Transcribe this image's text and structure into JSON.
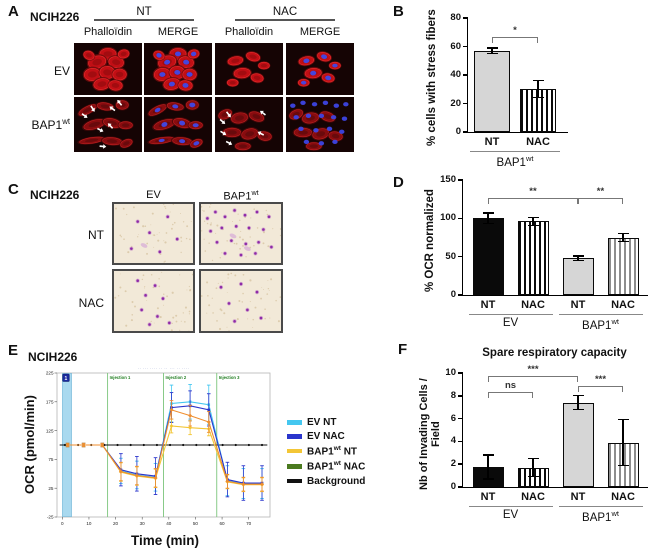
{
  "panels": {
    "a": {
      "label": "A",
      "cell_line": "NCIH226",
      "groups": [
        "NT",
        "NAC"
      ],
      "col_headers": [
        "Phalloïdin",
        "MERGE",
        "Phalloïdin",
        "MERGE"
      ],
      "row_labels": [
        "EV",
        "BAP1^wt"
      ]
    },
    "b": {
      "label": "B"
    },
    "c": {
      "label": "C",
      "cell_line": "NCIH226",
      "col_headers": [
        "EV",
        "BAP1^wt"
      ],
      "row_labels": [
        "NT",
        "NAC"
      ]
    },
    "d": {
      "label": "D"
    },
    "e": {
      "label": "E",
      "cell_line": "NCIH226"
    },
    "f": {
      "label": "F"
    }
  },
  "chart_data": [
    {
      "id": "B",
      "type": "bar",
      "ylabel": "% cells with stress fibers",
      "ylim": [
        0,
        80
      ],
      "yticks": [
        0,
        20,
        40,
        60,
        80
      ],
      "categories": [
        "NT",
        "NAC"
      ],
      "values": [
        57,
        30
      ],
      "errors": [
        2,
        6
      ],
      "patterns": [
        "gray-solid",
        "stripes-black"
      ],
      "groups": [
        {
          "label": "BAP1^wt",
          "from": 0,
          "to": 1
        }
      ],
      "brackets": [
        {
          "from": 0,
          "to": 1,
          "label": "*",
          "y": 67
        }
      ]
    },
    {
      "id": "D",
      "type": "bar",
      "ylabel": "% OCR normalized",
      "ylim": [
        0,
        150
      ],
      "yticks": [
        0,
        50,
        100,
        150
      ],
      "categories": [
        "NT",
        "NAC",
        "NT",
        "NAC"
      ],
      "values": [
        100,
        96,
        48,
        75
      ],
      "errors": [
        7,
        5,
        3,
        5
      ],
      "patterns": [
        "black-solid",
        "stripes-black",
        "gray-solid",
        "stripes-gray"
      ],
      "groups": [
        {
          "label": "EV",
          "from": 0,
          "to": 1
        },
        {
          "label": "BAP1^wt",
          "from": 2,
          "to": 3
        }
      ],
      "brackets": [
        {
          "from": 0,
          "to": 2,
          "label": "**",
          "y": 127
        },
        {
          "from": 2,
          "to": 3,
          "label": "**",
          "y": 127
        }
      ]
    },
    {
      "id": "E",
      "type": "line",
      "cell_line": "NCIH226",
      "xlabel": "Time (min)",
      "ylabel": "OCR (pmol/min)",
      "xlim": [
        -2,
        78
      ],
      "ylim": [
        -25,
        225
      ],
      "xticks": [
        0,
        10,
        20,
        30,
        40,
        50,
        60,
        70
      ],
      "yticks": [
        -25,
        25,
        75,
        125,
        175,
        225
      ],
      "injections": [
        {
          "label": "Injection 1",
          "x": 17
        },
        {
          "label": "Injection 2",
          "x": 38
        },
        {
          "label": "Injection 3",
          "x": 58
        }
      ],
      "band": {
        "x0": 0,
        "x1": 3.5,
        "marker": "1"
      },
      "small_header": "·· ··· ···· ·· ·· ··· ·· ····",
      "x": [
        2,
        8,
        15,
        22,
        28,
        35,
        41,
        48,
        55,
        62,
        68,
        75
      ],
      "series": [
        {
          "name": "EV NT",
          "color": "#44C7F0",
          "marker": "square",
          "values": [
            100,
            100,
            100,
            55,
            48,
            44,
            172,
            175,
            170,
            38,
            33,
            33
          ],
          "errors": [
            3,
            3,
            3,
            22,
            24,
            24,
            32,
            30,
            34,
            26,
            26,
            26
          ]
        },
        {
          "name": "EV NAC",
          "color": "#2A35CC",
          "marker": "square",
          "values": [
            100,
            100,
            100,
            57,
            50,
            46,
            165,
            168,
            161,
            40,
            34,
            34
          ],
          "errors": [
            3,
            3,
            3,
            28,
            30,
            32,
            26,
            26,
            28,
            30,
            30,
            30
          ]
        },
        {
          "name": "BAP1^wt NT",
          "color": "#F3C636",
          "marker": "diamond",
          "values": [
            100,
            100,
            100,
            53,
            46,
            42,
            133,
            130,
            128,
            36,
            31,
            31
          ],
          "errors": [
            3,
            3,
            3,
            16,
            16,
            16,
            12,
            12,
            12,
            12,
            12,
            12
          ]
        },
        {
          "name": "BAP1^wt NAC",
          "color": "#4A7A1F",
          "plot_color": "#EF8E2E",
          "marker": "diamond",
          "values": [
            100,
            100,
            100,
            54,
            47,
            43,
            161,
            151,
            140,
            37,
            32,
            32
          ],
          "errors": [
            3,
            3,
            3,
            16,
            16,
            16,
            16,
            18,
            18,
            12,
            12,
            12
          ]
        },
        {
          "name": "Background",
          "color": "#111111",
          "marker": "dot",
          "flat": 100
        }
      ]
    },
    {
      "id": "F",
      "type": "bar",
      "title": "Spare respiratory capacity",
      "ylabel": "Nb of Invading Cells / Field",
      "ylim": [
        0,
        10
      ],
      "yticks": [
        0,
        2,
        4,
        6,
        8,
        10
      ],
      "categories": [
        "NT",
        "NAC",
        "NT",
        "NAC"
      ],
      "values": [
        1.75,
        1.7,
        7.4,
        3.9
      ],
      "errors": [
        1.05,
        0.8,
        0.6,
        2.0
      ],
      "patterns": [
        "black-solid",
        "stripes-black",
        "gray-solid",
        "stripes-gray"
      ],
      "groups": [
        {
          "label": "EV",
          "from": 0,
          "to": 1
        },
        {
          "label": "BAP1^wt",
          "from": 2,
          "to": 3
        }
      ],
      "brackets": [
        {
          "from": 0,
          "to": 2,
          "label": "***",
          "y": 9.7
        },
        {
          "from": 0,
          "to": 1,
          "label": "ns",
          "y": 8.3
        },
        {
          "from": 2,
          "to": 3,
          "label": "***",
          "y": 8.9
        }
      ]
    }
  ]
}
